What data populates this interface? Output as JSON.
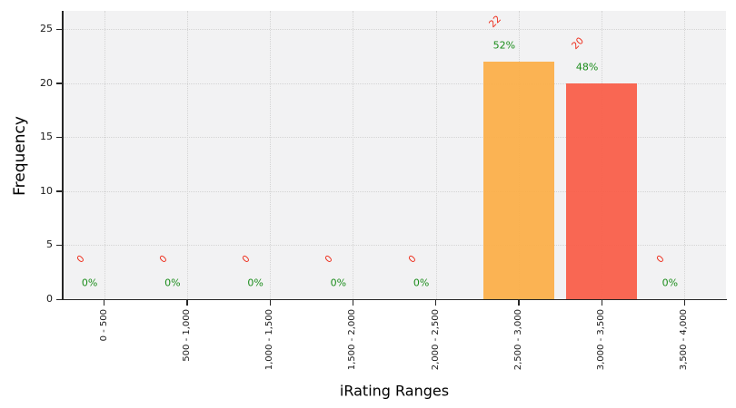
{
  "figure": {
    "background": "#ffffff",
    "plot_background": "#f2f2f3",
    "grid_color": "#d4d4d4",
    "axis_color": "#262626"
  },
  "chart_data": {
    "type": "bar",
    "title": "",
    "xlabel": "iRating Ranges",
    "ylabel": "Frequency",
    "categories": [
      "0 - 500",
      "500 - 1,000",
      "1,000 - 1,500",
      "1,500 - 2,000",
      "2,000 - 2,500",
      "2,500 - 3,000",
      "3,000 - 3,500",
      "3,500 - 4,000"
    ],
    "values": [
      0,
      0,
      0,
      0,
      0,
      22,
      20,
      0
    ],
    "count_labels": [
      "0",
      "0",
      "0",
      "0",
      "0",
      "22",
      "20",
      "0"
    ],
    "percent_labels": [
      "0%",
      "0%",
      "0%",
      "0%",
      "0%",
      "52%",
      "48%",
      "0%"
    ],
    "bar_colors": [
      null,
      null,
      null,
      null,
      null,
      "#fbaf4a",
      "#f95f4a",
      null
    ],
    "count_label_color": "#ee2e1c",
    "percent_label_color": "#1a8c1a",
    "yticks": [
      0,
      5,
      10,
      15,
      20,
      25
    ],
    "ylim": [
      0,
      26.7
    ],
    "grid": true,
    "legend": false
  }
}
